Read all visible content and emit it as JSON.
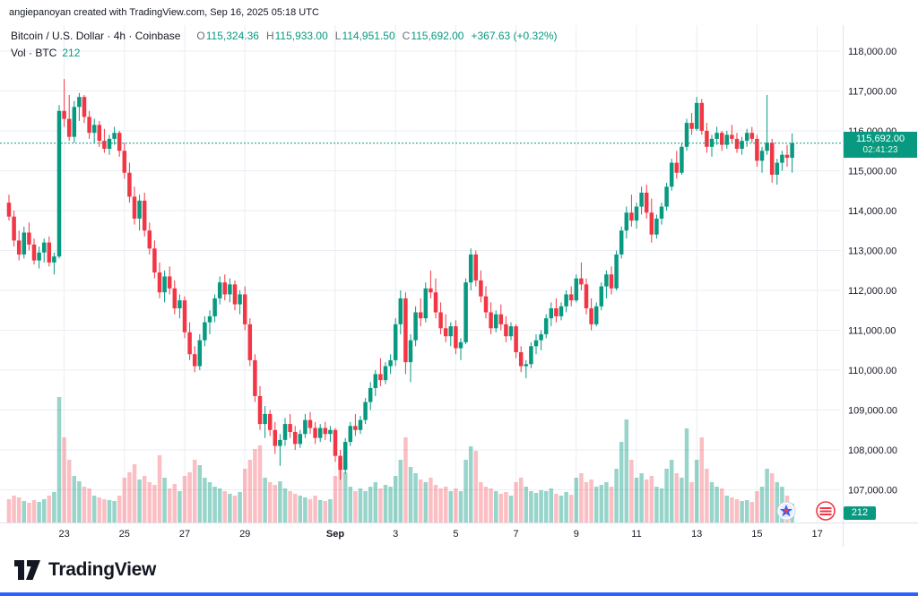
{
  "attribution": "angiepanoyan created with TradingView.com, Sep 16, 2025 05:18 UTC",
  "legend": {
    "symbol_title": "Bitcoin / U.S. Dollar · 4h · Coinbase",
    "ohlc": {
      "o_label": "O",
      "o": "115,324.36",
      "h_label": "H",
      "h": "115,933.00",
      "l_label": "L",
      "l": "114,951.50",
      "c_label": "C",
      "c": "115,692.00",
      "change": "+367.63 (+0.32%)"
    },
    "volume_label": "Vol · BTC",
    "volume_value": "212"
  },
  "last_price": {
    "value": 115692,
    "display": "115,692.00",
    "countdown": "02:41:23"
  },
  "volume_badge": "212",
  "footer": {
    "brand": "TradingView"
  },
  "colors": {
    "up": "#089981",
    "down": "#f23645",
    "vol_up": "rgba(8,153,129,0.42)",
    "vol_down": "rgba(242,54,69,0.32)",
    "grid": "#e9edf3",
    "border": "#dfe3ea",
    "axis_text": "#131722",
    "label_bg": "#089981",
    "accent_blue": "#2962ff"
  },
  "chart_data": {
    "type": "candlestick+volume",
    "title": "Bitcoin / U.S. Dollar · 4h · Coinbase",
    "interval": "4h",
    "ylim": [
      106700,
      118700
    ],
    "last_price": 115692,
    "y_ticks": [
      {
        "value": 118000,
        "label": "118,000.00"
      },
      {
        "value": 117000,
        "label": "117,000.00"
      },
      {
        "value": 116000,
        "label": "116,000.00"
      },
      {
        "value": 115000,
        "label": "115,000.00"
      },
      {
        "value": 114000,
        "label": "114,000.00"
      },
      {
        "value": 113000,
        "label": "113,000.00"
      },
      {
        "value": 112000,
        "label": "112,000.00"
      },
      {
        "value": 111000,
        "label": "111,000.00"
      },
      {
        "value": 110000,
        "label": "110,000.00"
      },
      {
        "value": 109000,
        "label": "109,000.00"
      },
      {
        "value": 108000,
        "label": "108,000.00"
      },
      {
        "value": 107000,
        "label": "107,000.00"
      }
    ],
    "x_ticks": [
      {
        "i": 11,
        "label": "23",
        "bold": false
      },
      {
        "i": 23,
        "label": "25",
        "bold": false
      },
      {
        "i": 35,
        "label": "27",
        "bold": false
      },
      {
        "i": 47,
        "label": "29",
        "bold": false
      },
      {
        "i": 65,
        "label": "Sep",
        "bold": true
      },
      {
        "i": 77,
        "label": "3",
        "bold": false
      },
      {
        "i": 89,
        "label": "5",
        "bold": false
      },
      {
        "i": 101,
        "label": "7",
        "bold": false
      },
      {
        "i": 113,
        "label": "9",
        "bold": false
      },
      {
        "i": 125,
        "label": "11",
        "bold": false
      },
      {
        "i": 137,
        "label": "13",
        "bold": false
      },
      {
        "i": 149,
        "label": "15",
        "bold": false
      },
      {
        "i": 161,
        "label": "17",
        "bold": false
      }
    ],
    "ohlc": [
      [
        114200,
        114400,
        113750,
        113850
      ],
      [
        113850,
        114000,
        113100,
        113250
      ],
      [
        113250,
        113500,
        112750,
        112900
      ],
      [
        112900,
        113600,
        112800,
        113450
      ],
      [
        113450,
        113700,
        113000,
        113150
      ],
      [
        113150,
        113300,
        112650,
        112750
      ],
      [
        112750,
        113100,
        112550,
        112950
      ],
      [
        112950,
        113300,
        112700,
        113200
      ],
      [
        113200,
        113350,
        112600,
        112700
      ],
      [
        112700,
        112950,
        112400,
        112850
      ],
      [
        112850,
        116650,
        112800,
        116500
      ],
      [
        116500,
        117300,
        116100,
        116300
      ],
      [
        116300,
        116900,
        115750,
        115850
      ],
      [
        115850,
        116750,
        115700,
        116600
      ],
      [
        116600,
        116950,
        116250,
        116850
      ],
      [
        116850,
        116900,
        116200,
        116350
      ],
      [
        116350,
        116500,
        115800,
        115950
      ],
      [
        115950,
        116300,
        115700,
        116150
      ],
      [
        116150,
        116250,
        115600,
        115750
      ],
      [
        115750,
        116050,
        115450,
        115550
      ],
      [
        115550,
        115900,
        115400,
        115800
      ],
      [
        115800,
        116100,
        115650,
        115950
      ],
      [
        115950,
        116000,
        115350,
        115500
      ],
      [
        115500,
        115700,
        114800,
        114950
      ],
      [
        114950,
        115200,
        114200,
        114350
      ],
      [
        114350,
        114600,
        113650,
        113800
      ],
      [
        113800,
        114400,
        113500,
        114250
      ],
      [
        114250,
        114450,
        113350,
        113500
      ],
      [
        113500,
        113700,
        112900,
        113050
      ],
      [
        113050,
        113250,
        112300,
        112450
      ],
      [
        112450,
        112700,
        111800,
        111950
      ],
      [
        111950,
        112500,
        111700,
        112350
      ],
      [
        112350,
        112600,
        111900,
        112050
      ],
      [
        112050,
        112250,
        111400,
        111550
      ],
      [
        111550,
        111900,
        111300,
        111750
      ],
      [
        111750,
        111850,
        110800,
        110950
      ],
      [
        110950,
        111200,
        110250,
        110400
      ],
      [
        110400,
        110600,
        109950,
        110100
      ],
      [
        110100,
        110900,
        110000,
        110750
      ],
      [
        110750,
        111350,
        110600,
        111200
      ],
      [
        111200,
        111500,
        110900,
        111350
      ],
      [
        111350,
        111900,
        111200,
        111800
      ],
      [
        111800,
        112350,
        111650,
        112200
      ],
      [
        112200,
        112400,
        111750,
        111900
      ],
      [
        111900,
        112300,
        111700,
        112150
      ],
      [
        112150,
        112250,
        111500,
        111650
      ],
      [
        111650,
        112000,
        111400,
        111900
      ],
      [
        111900,
        112100,
        111000,
        111150
      ],
      [
        111150,
        111300,
        110100,
        110250
      ],
      [
        110250,
        110400,
        109200,
        109350
      ],
      [
        109350,
        109600,
        108500,
        108650
      ],
      [
        108650,
        109100,
        108300,
        108900
      ],
      [
        108900,
        109000,
        108350,
        108500
      ],
      [
        108500,
        108700,
        107900,
        108100
      ],
      [
        108100,
        108400,
        107600,
        108250
      ],
      [
        108250,
        108800,
        108100,
        108650
      ],
      [
        108650,
        108900,
        108300,
        108450
      ],
      [
        108450,
        108600,
        108000,
        108150
      ],
      [
        108150,
        108500,
        108050,
        108400
      ],
      [
        108400,
        108900,
        108300,
        108750
      ],
      [
        108750,
        108950,
        108400,
        108550
      ],
      [
        108550,
        108700,
        108150,
        108300
      ],
      [
        108300,
        108650,
        108200,
        108550
      ],
      [
        108550,
        108700,
        108250,
        108400
      ],
      [
        108400,
        108600,
        108200,
        108500
      ],
      [
        108500,
        108550,
        107700,
        107850
      ],
      [
        107850,
        108000,
        107250,
        107500
      ],
      [
        107500,
        108300,
        107400,
        108200
      ],
      [
        108200,
        108700,
        108100,
        108600
      ],
      [
        108600,
        108900,
        108350,
        108500
      ],
      [
        108500,
        108850,
        108400,
        108750
      ],
      [
        108750,
        109300,
        108650,
        109200
      ],
      [
        109200,
        109700,
        109000,
        109550
      ],
      [
        109550,
        110000,
        109350,
        109900
      ],
      [
        109900,
        110300,
        109600,
        109750
      ],
      [
        109750,
        110200,
        109650,
        110100
      ],
      [
        110100,
        110400,
        109900,
        110250
      ],
      [
        110250,
        111300,
        110100,
        111150
      ],
      [
        111150,
        112000,
        110900,
        111800
      ],
      [
        111800,
        111950,
        109900,
        110200
      ],
      [
        110200,
        110900,
        109700,
        110750
      ],
      [
        110750,
        111600,
        110600,
        111450
      ],
      [
        111450,
        111800,
        111100,
        111300
      ],
      [
        111300,
        112200,
        111200,
        112050
      ],
      [
        112050,
        112500,
        111800,
        111950
      ],
      [
        111950,
        112300,
        111300,
        111450
      ],
      [
        111450,
        111700,
        110900,
        111050
      ],
      [
        111050,
        111400,
        110700,
        110850
      ],
      [
        110850,
        111200,
        110600,
        111100
      ],
      [
        111100,
        111250,
        110400,
        110550
      ],
      [
        110550,
        110800,
        110250,
        110700
      ],
      [
        110700,
        112300,
        110650,
        112200
      ],
      [
        112200,
        113050,
        112000,
        112900
      ],
      [
        112900,
        113000,
        112100,
        112250
      ],
      [
        112250,
        112500,
        111700,
        111850
      ],
      [
        111850,
        112100,
        111300,
        111450
      ],
      [
        111450,
        111700,
        110900,
        111050
      ],
      [
        111050,
        111500,
        110950,
        111400
      ],
      [
        111400,
        111650,
        111000,
        111150
      ],
      [
        111150,
        111350,
        110700,
        110850
      ],
      [
        110850,
        111200,
        110750,
        111100
      ],
      [
        111100,
        111150,
        110300,
        110450
      ],
      [
        110450,
        110600,
        109950,
        110100
      ],
      [
        110100,
        110250,
        109800,
        110150
      ],
      [
        110150,
        110700,
        110050,
        110600
      ],
      [
        110600,
        110900,
        110400,
        110750
      ],
      [
        110750,
        111000,
        110500,
        110900
      ],
      [
        110900,
        111400,
        110800,
        111300
      ],
      [
        111300,
        111700,
        111100,
        111550
      ],
      [
        111550,
        111800,
        111200,
        111350
      ],
      [
        111350,
        111700,
        111250,
        111600
      ],
      [
        111600,
        112000,
        111450,
        111900
      ],
      [
        111900,
        112100,
        111600,
        111750
      ],
      [
        111750,
        112400,
        111700,
        112300
      ],
      [
        112300,
        112700,
        112000,
        112150
      ],
      [
        112150,
        112300,
        111400,
        111550
      ],
      [
        111550,
        111800,
        111000,
        111150
      ],
      [
        111150,
        111700,
        111100,
        111600
      ],
      [
        111600,
        112200,
        111500,
        112100
      ],
      [
        112100,
        112500,
        111800,
        112400
      ],
      [
        112400,
        112600,
        111900,
        112050
      ],
      [
        112050,
        113000,
        112000,
        112900
      ],
      [
        112900,
        113600,
        112800,
        113500
      ],
      [
        113500,
        114100,
        113300,
        113950
      ],
      [
        113950,
        114400,
        113600,
        113750
      ],
      [
        113750,
        114200,
        113550,
        114100
      ],
      [
        114100,
        114600,
        113900,
        114450
      ],
      [
        114450,
        114650,
        113800,
        113950
      ],
      [
        113950,
        114300,
        113200,
        113400
      ],
      [
        113400,
        113900,
        113300,
        113800
      ],
      [
        113800,
        114200,
        113650,
        114100
      ],
      [
        114100,
        114700,
        114000,
        114600
      ],
      [
        114600,
        115300,
        114500,
        115200
      ],
      [
        115200,
        115500,
        114800,
        114950
      ],
      [
        114950,
        115700,
        114900,
        115600
      ],
      [
        115600,
        116300,
        115500,
        116200
      ],
      [
        116200,
        116450,
        115900,
        116050
      ],
      [
        116050,
        116850,
        116000,
        116700
      ],
      [
        116700,
        116800,
        115900,
        116000
      ],
      [
        116000,
        116200,
        115450,
        115600
      ],
      [
        115600,
        115900,
        115350,
        115800
      ],
      [
        115800,
        116100,
        115650,
        115950
      ],
      [
        115950,
        116000,
        115500,
        115650
      ],
      [
        115650,
        116000,
        115550,
        115900
      ],
      [
        115900,
        116150,
        115700,
        115800
      ],
      [
        115800,
        115950,
        115450,
        115550
      ],
      [
        115550,
        115850,
        115400,
        115750
      ],
      [
        115750,
        116050,
        115600,
        115950
      ],
      [
        115950,
        116100,
        115700,
        115800
      ],
      [
        115800,
        115900,
        115100,
        115250
      ],
      [
        115250,
        115600,
        114950,
        115500
      ],
      [
        115500,
        116900,
        115400,
        115700
      ],
      [
        115700,
        115800,
        114700,
        114900
      ],
      [
        114900,
        115300,
        114650,
        115200
      ],
      [
        115200,
        115500,
        115000,
        115400
      ],
      [
        115400,
        115650,
        115100,
        115324.36
      ],
      [
        115324.36,
        115933,
        114951.5,
        115692
      ]
    ],
    "volume": [
      260,
      300,
      280,
      240,
      220,
      250,
      230,
      260,
      300,
      340,
      1400,
      950,
      700,
      520,
      460,
      400,
      380,
      300,
      280,
      260,
      250,
      240,
      300,
      500,
      560,
      650,
      480,
      520,
      450,
      420,
      750,
      500,
      380,
      430,
      350,
      520,
      560,
      700,
      640,
      500,
      450,
      400,
      380,
      350,
      320,
      300,
      340,
      600,
      700,
      820,
      860,
      500,
      450,
      420,
      460,
      380,
      350,
      320,
      300,
      280,
      260,
      300,
      250,
      240,
      260,
      520,
      660,
      560,
      400,
      350,
      380,
      350,
      400,
      450,
      380,
      420,
      400,
      520,
      700,
      950,
      620,
      550,
      480,
      450,
      500,
      420,
      380,
      400,
      350,
      380,
      350,
      700,
      850,
      800,
      450,
      400,
      380,
      350,
      320,
      340,
      300,
      450,
      500,
      400,
      350,
      330,
      360,
      350,
      380,
      320,
      300,
      340,
      310,
      500,
      550,
      450,
      480,
      400,
      420,
      450,
      400,
      600,
      900,
      1150,
      700,
      500,
      550,
      480,
      520,
      400,
      380,
      600,
      700,
      550,
      500,
      1050,
      450,
      700,
      950,
      600,
      450,
      400,
      380,
      300,
      280,
      260,
      240,
      250,
      230,
      350,
      400,
      600,
      550,
      450,
      400,
      300,
      212
    ]
  }
}
